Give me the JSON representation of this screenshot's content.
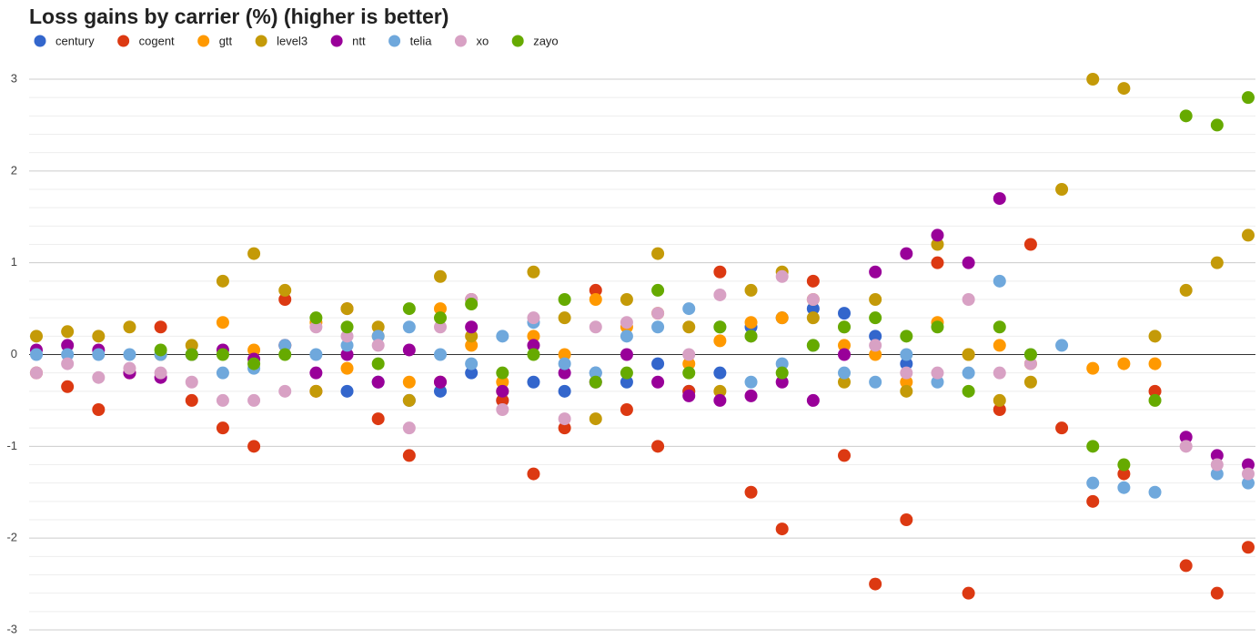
{
  "chart_data": {
    "type": "scatter",
    "title": "Loss gains by carrier (%) (higher is better)",
    "x": [
      0,
      1,
      2,
      3,
      4,
      5,
      6,
      7,
      8,
      9,
      10,
      11,
      12,
      13,
      14,
      15,
      16,
      17,
      18,
      19,
      20,
      21,
      22,
      23,
      24,
      25,
      26,
      27,
      28,
      29,
      30,
      31,
      32,
      33,
      34,
      35,
      36,
      37,
      38,
      39
    ],
    "xlim": [
      0,
      39
    ],
    "ylim": [
      -3,
      3
    ],
    "yticks": [
      -3,
      -2,
      -1,
      0,
      1,
      2,
      3
    ],
    "grid": true,
    "legend": "top",
    "series": [
      {
        "name": "century",
        "color": "#3366cc",
        "values": [
          null,
          null,
          null,
          null,
          null,
          null,
          null,
          null,
          null,
          null,
          -0.4,
          -0.3,
          -0.5,
          -0.4,
          -0.2,
          -0.5,
          -0.3,
          -0.4,
          -0.2,
          -0.3,
          -0.1,
          -0.4,
          -0.2,
          0.3,
          0.4,
          0.5,
          0.45,
          0.2,
          -0.1,
          null,
          null,
          null,
          null,
          null,
          null,
          null,
          null,
          null,
          null,
          null
        ]
      },
      {
        "name": "cogent",
        "color": "#dc3912",
        "values": [
          -0.2,
          -0.35,
          -0.6,
          -0.2,
          0.3,
          -0.5,
          -0.8,
          -1.0,
          0.6,
          -0.4,
          0.5,
          -0.7,
          -1.1,
          -0.3,
          0.6,
          -0.5,
          -1.3,
          -0.8,
          0.7,
          -0.6,
          -1.0,
          -0.4,
          0.9,
          -1.5,
          -1.9,
          0.8,
          -1.1,
          -2.5,
          -1.8,
          1.0,
          -2.6,
          -0.6,
          1.2,
          -0.8,
          -1.6,
          -1.3,
          -0.4,
          -2.3,
          -2.6,
          -2.1
        ]
      },
      {
        "name": "gtt",
        "color": "#ff9900",
        "values": [
          null,
          null,
          null,
          null,
          null,
          null,
          0.35,
          0.05,
          0.1,
          0.35,
          -0.15,
          0.2,
          -0.3,
          0.5,
          0.1,
          -0.3,
          0.2,
          0.0,
          0.6,
          0.3,
          0.45,
          -0.1,
          0.15,
          0.35,
          0.4,
          0.6,
          0.1,
          0.0,
          -0.3,
          0.35,
          0.0,
          0.1,
          -0.1,
          null,
          -0.15,
          -0.1,
          -0.1,
          null,
          null,
          null
        ]
      },
      {
        "name": "level3",
        "color": "#c49a08",
        "values": [
          0.2,
          0.25,
          0.2,
          0.3,
          0.0,
          0.1,
          0.8,
          1.1,
          0.7,
          -0.4,
          0.5,
          0.3,
          -0.5,
          0.85,
          0.2,
          -0.4,
          0.9,
          0.4,
          -0.7,
          0.6,
          1.1,
          0.3,
          -0.4,
          0.7,
          0.9,
          0.4,
          -0.3,
          0.6,
          -0.4,
          1.2,
          0.0,
          -0.5,
          -0.3,
          1.8,
          3.0,
          2.9,
          0.2,
          0.7,
          1.0,
          1.3
        ]
      },
      {
        "name": "ntt",
        "color": "#990099",
        "values": [
          0.05,
          0.1,
          0.05,
          -0.2,
          -0.25,
          0.0,
          0.05,
          -0.05,
          0.1,
          -0.2,
          0.0,
          -0.3,
          0.05,
          -0.3,
          0.3,
          -0.4,
          0.1,
          -0.2,
          -0.3,
          0.0,
          -0.3,
          -0.45,
          -0.5,
          -0.45,
          -0.3,
          -0.5,
          0.0,
          0.9,
          1.1,
          1.3,
          1.0,
          1.7,
          null,
          null,
          null,
          null,
          null,
          -0.9,
          -1.1,
          -1.2
        ]
      },
      {
        "name": "telia",
        "color": "#6fa8dc",
        "values": [
          0.0,
          0.0,
          0.0,
          0.0,
          0.0,
          0.0,
          -0.2,
          -0.15,
          0.1,
          0.0,
          0.1,
          0.2,
          0.3,
          0.0,
          -0.1,
          0.2,
          0.35,
          -0.1,
          -0.2,
          0.2,
          0.3,
          0.5,
          0.3,
          -0.3,
          -0.1,
          0.1,
          -0.2,
          -0.3,
          0.0,
          -0.3,
          -0.2,
          0.8,
          0.0,
          0.1,
          -1.4,
          -1.45,
          -1.5,
          null,
          -1.3,
          -1.4
        ]
      },
      {
        "name": "xo",
        "color": "#d8a1c4",
        "values": [
          -0.2,
          -0.1,
          -0.25,
          -0.15,
          -0.2,
          -0.3,
          -0.5,
          -0.5,
          -0.4,
          0.3,
          0.2,
          0.1,
          -0.8,
          0.3,
          0.6,
          -0.6,
          0.4,
          -0.7,
          0.3,
          0.35,
          0.45,
          0.0,
          0.65,
          0.2,
          0.85,
          0.6,
          0.3,
          0.1,
          -0.2,
          -0.2,
          0.6,
          -0.2,
          -0.1,
          null,
          null,
          null,
          null,
          -1.0,
          -1.2,
          -1.3
        ]
      },
      {
        "name": "zayo",
        "color": "#66aa00",
        "values": [
          null,
          null,
          null,
          null,
          0.05,
          0.0,
          0.0,
          -0.1,
          0.0,
          0.4,
          0.3,
          -0.1,
          0.5,
          0.4,
          0.55,
          -0.2,
          0.0,
          0.6,
          -0.3,
          -0.2,
          0.7,
          -0.2,
          0.3,
          0.2,
          -0.2,
          0.1,
          0.3,
          0.4,
          0.2,
          0.3,
          -0.4,
          0.3,
          0.0,
          null,
          -1.0,
          -1.2,
          -0.5,
          2.6,
          2.5,
          2.8
        ]
      }
    ]
  }
}
